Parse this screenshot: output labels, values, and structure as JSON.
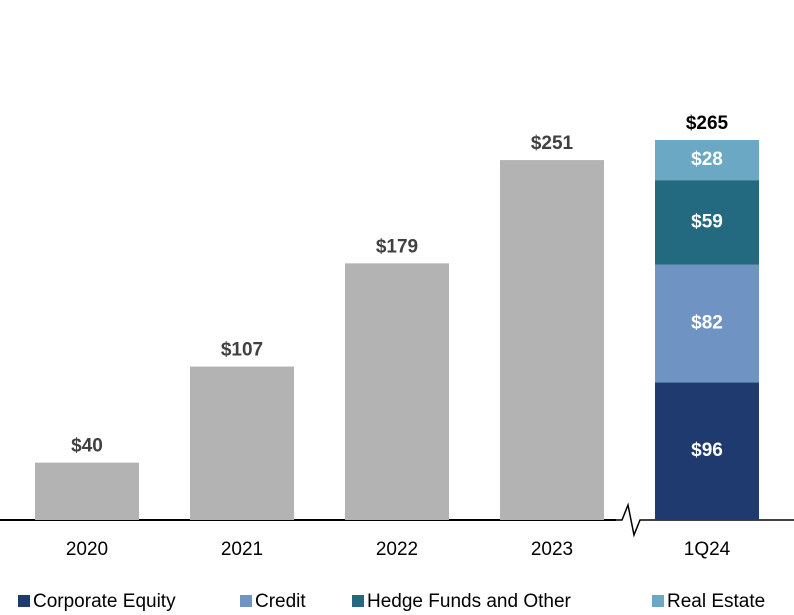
{
  "chart_data": {
    "type": "bar",
    "categories": [
      "2020",
      "2021",
      "2022",
      "2023",
      "1Q24"
    ],
    "totals": {
      "values": [
        40,
        107,
        179,
        251,
        265
      ],
      "value_labels": [
        "$40",
        "$107",
        "$179",
        "$251",
        "$265"
      ],
      "color": "#b3b3b3"
    },
    "series": [
      {
        "name": "Corporate Equity",
        "color": "#1f3a6e",
        "values": [
          null,
          null,
          null,
          null,
          96
        ],
        "value_labels": [
          null,
          null,
          null,
          null,
          "$96"
        ]
      },
      {
        "name": "Credit",
        "color": "#6f93c2",
        "values": [
          null,
          null,
          null,
          null,
          82
        ],
        "value_labels": [
          null,
          null,
          null,
          null,
          "$82"
        ]
      },
      {
        "name": "Hedge Funds and Other",
        "color": "#236a80",
        "values": [
          null,
          null,
          null,
          null,
          59
        ],
        "value_labels": [
          null,
          null,
          null,
          null,
          "$59"
        ]
      },
      {
        "name": "Real Estate",
        "color": "#6aa8c4",
        "values": [
          null,
          null,
          null,
          null,
          28
        ],
        "value_labels": [
          null,
          null,
          null,
          null,
          "$28"
        ]
      }
    ]
  }
}
